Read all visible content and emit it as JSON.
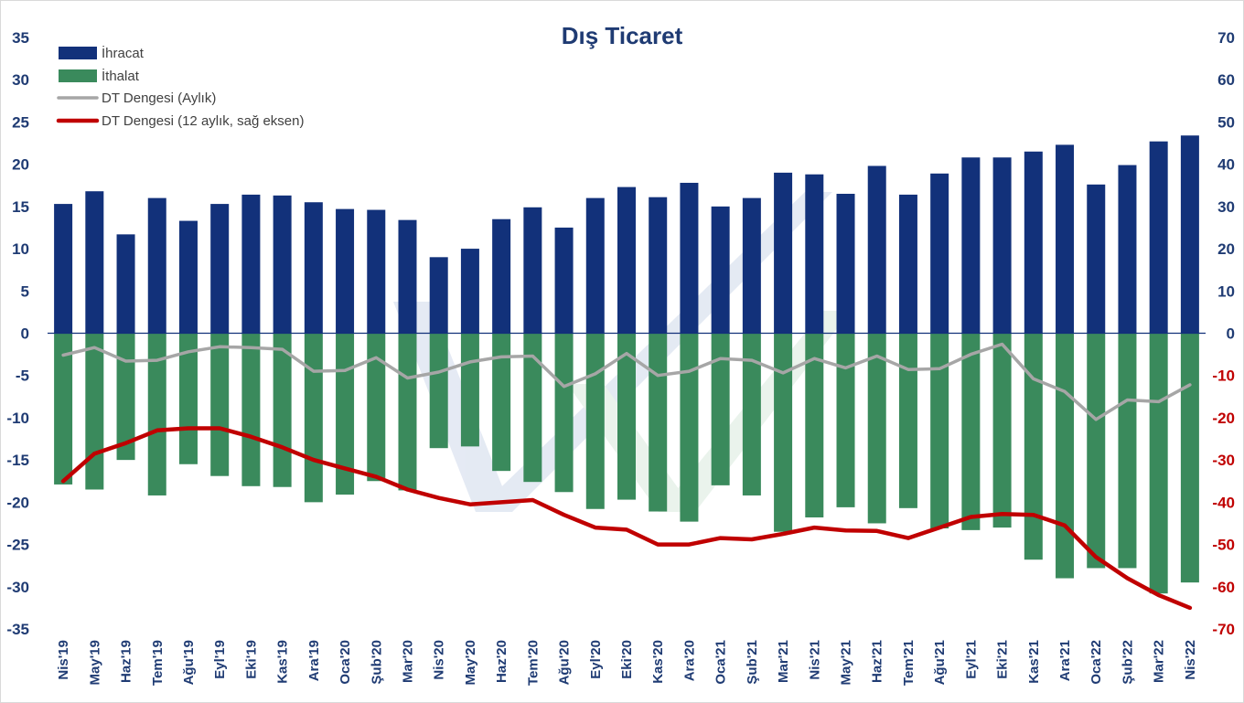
{
  "chart_data": {
    "type": "bar",
    "title": "Dış Ticaret",
    "xlabel": "",
    "ylabel": "",
    "ylim": [
      -35,
      35
    ],
    "y2lim": [
      -70,
      70
    ],
    "yticks": [
      35,
      30,
      25,
      20,
      15,
      10,
      5,
      0,
      -5,
      -10,
      -15,
      -20,
      -25,
      -30,
      -35
    ],
    "y2ticks": [
      70,
      60,
      50,
      40,
      30,
      20,
      10,
      0,
      -10,
      -20,
      -30,
      -40,
      -50,
      -60,
      -70
    ],
    "grid": false,
    "legend_position": "top-left",
    "categories": [
      "Nis'19",
      "May'19",
      "Haz'19",
      "Tem'19",
      "Ağu'19",
      "Eyl'19",
      "Eki'19",
      "Kas'19",
      "Ara'19",
      "Oca'20",
      "Şub'20",
      "Mar'20",
      "Nis'20",
      "May'20",
      "Haz'20",
      "Tem'20",
      "Ağu'20",
      "Eyl'20",
      "Eki'20",
      "Kas'20",
      "Ara'20",
      "Oca'21",
      "Şub'21",
      "Mar'21",
      "Nis'21",
      "May'21",
      "Haz'21",
      "Tem'21",
      "Ağu'21",
      "Eyl'21",
      "Eki'21",
      "Kas'21",
      "Ara'21",
      "Oca'22",
      "Şub'22",
      "Mar'22",
      "Nis'22"
    ],
    "series": [
      {
        "name": "İhracat",
        "kind": "bar",
        "axis": "left",
        "color": "#12317a",
        "values": [
          15.3,
          16.8,
          11.7,
          16.0,
          13.3,
          15.3,
          16.4,
          16.3,
          15.5,
          14.7,
          14.6,
          13.4,
          9.0,
          10.0,
          13.5,
          14.9,
          12.5,
          16.0,
          17.3,
          16.1,
          17.8,
          15.0,
          16.0,
          19.0,
          18.8,
          16.5,
          19.8,
          16.4,
          18.9,
          20.8,
          20.8,
          21.5,
          22.3,
          17.6,
          19.9,
          22.7,
          23.4
        ]
      },
      {
        "name": "İthalat",
        "kind": "bar",
        "axis": "left",
        "color": "#3a8a5c",
        "values": [
          -17.9,
          -18.5,
          -15.0,
          -19.2,
          -15.5,
          -16.9,
          -18.1,
          -18.2,
          -20.0,
          -19.1,
          -17.5,
          -18.6,
          -13.6,
          -13.4,
          -16.3,
          -17.6,
          -18.8,
          -20.8,
          -19.7,
          -21.1,
          -22.3,
          -18.0,
          -19.2,
          -23.5,
          -21.8,
          -20.6,
          -22.5,
          -20.7,
          -23.1,
          -23.3,
          -23.0,
          -26.8,
          -29.0,
          -27.8,
          -27.8,
          -30.8,
          -29.5
        ]
      },
      {
        "name": "DT Dengesi (Aylık)",
        "kind": "line",
        "axis": "left",
        "color": "#a6a6a6",
        "values": [
          -2.6,
          -1.7,
          -3.3,
          -3.2,
          -2.2,
          -1.6,
          -1.7,
          -1.9,
          -4.5,
          -4.4,
          -2.9,
          -5.3,
          -4.6,
          -3.4,
          -2.8,
          -2.7,
          -6.3,
          -4.8,
          -2.4,
          -5.0,
          -4.5,
          -3.0,
          -3.2,
          -4.7,
          -3.0,
          -4.1,
          -2.7,
          -4.3,
          -4.2,
          -2.5,
          -1.3,
          -5.4,
          -6.9,
          -10.2,
          -7.9,
          -8.1,
          -6.1
        ]
      },
      {
        "name": "DT Dengesi (12 aylık, sağ eksen)",
        "kind": "line",
        "axis": "right",
        "color": "#c00000",
        "values": [
          -35,
          -28.5,
          -26,
          -23,
          -22.5,
          -22.5,
          -24.5,
          -27,
          -30,
          -32,
          -34,
          -37,
          -39,
          -40.5,
          -40,
          -39.5,
          -43,
          -46,
          -46.5,
          -50,
          -50,
          -48.5,
          -48.8,
          -47.5,
          -46,
          -46.7,
          -46.8,
          -48.5,
          -46,
          -43.5,
          -42.8,
          -43,
          -45.5,
          -53,
          -58,
          -62,
          -65
        ]
      }
    ]
  }
}
